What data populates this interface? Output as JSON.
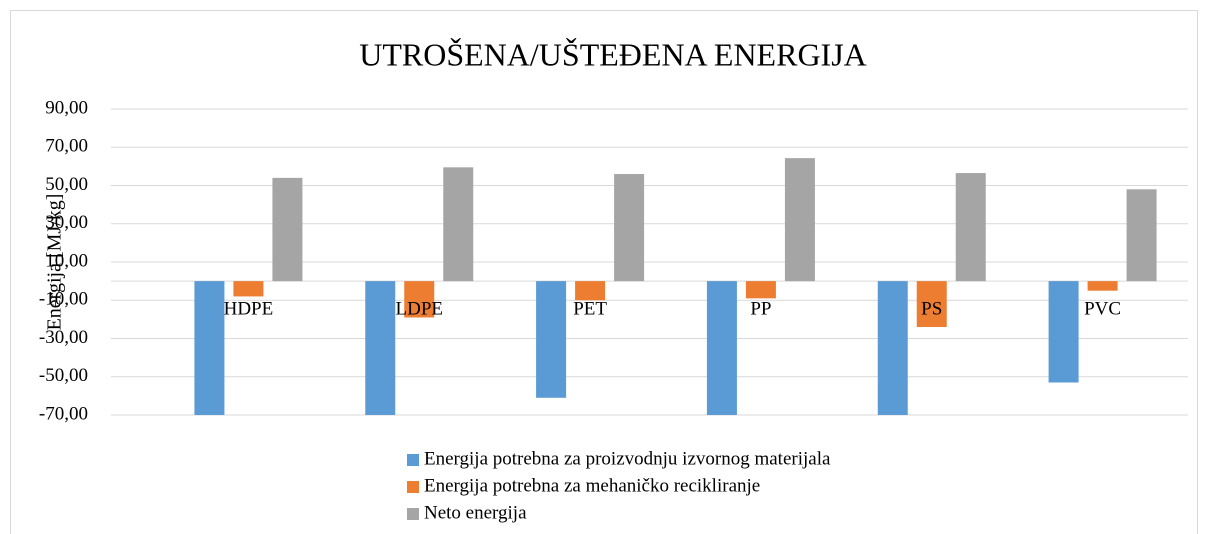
{
  "chart_data": {
    "type": "bar",
    "title": "UTROŠENA/UŠTEĐENA ENERGIJA",
    "ylabel": "Energija [MJ/kg]",
    "categories": [
      "HDPE",
      "LDPE",
      "PET",
      "PP",
      "PS",
      "PVC"
    ],
    "series": [
      {
        "name": "Energija potrebna za proizvodnju izvornog materijala",
        "color": "#5b9bd5",
        "values": [
          -70,
          -70,
          -61,
          -70,
          -70,
          -53
        ]
      },
      {
        "name": "Energija potrebna za mehaničko recikliranje",
        "color": "#ed7d31",
        "values": [
          -8,
          -19,
          -10,
          -9,
          -24,
          -5
        ]
      },
      {
        "name": "Neto energija",
        "color": "#a5a5a5",
        "values": [
          54,
          59.5,
          56,
          64.3,
          56.5,
          48
        ]
      }
    ],
    "ylim": [
      -70,
      90
    ],
    "yticks": [
      {
        "value": 90,
        "label": "90,00"
      },
      {
        "value": 70,
        "label": "70,00"
      },
      {
        "value": 50,
        "label": "50,00"
      },
      {
        "value": 30,
        "label": "30,00"
      },
      {
        "value": 10,
        "label": "10,00"
      },
      {
        "value": -10,
        "label": "-10,00"
      },
      {
        "value": -30,
        "label": "-30,00"
      },
      {
        "value": -50,
        "label": "-50,00"
      },
      {
        "value": -70,
        "label": "-70,00"
      }
    ],
    "grid": true,
    "legend": "bottom"
  }
}
